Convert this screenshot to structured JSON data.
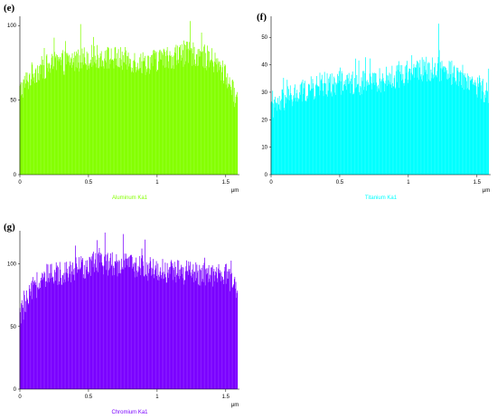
{
  "chart_data": [
    {
      "type": "bar",
      "panel_label": "(e)",
      "series_label": "Aluminum Ka1",
      "color": "#84FF00",
      "x_unit": "μm",
      "xlim": [
        0,
        1.6
      ],
      "ylim": [
        0,
        105
      ],
      "x_ticks": [
        0,
        0.5,
        1,
        1.5
      ],
      "x_tick_labels": [
        "0",
        "0.5",
        "1",
        "1.5"
      ],
      "y_ticks": [
        0,
        50,
        100
      ],
      "y_tick_labels": [
        "0",
        "50",
        "100"
      ],
      "profile_x": [
        0,
        0.05,
        0.1,
        0.2,
        0.3,
        0.4,
        0.5,
        0.6,
        0.7,
        0.8,
        0.9,
        1.0,
        1.1,
        1.2,
        1.3,
        1.4,
        1.5,
        1.55,
        1.6
      ],
      "profile_y": [
        55,
        62,
        68,
        72,
        74,
        76,
        78,
        78,
        77,
        76,
        74,
        76,
        78,
        80,
        80,
        76,
        66,
        55,
        48
      ],
      "peak_value": 103
    },
    {
      "type": "bar",
      "panel_label": "(f)",
      "series_label": "Titanium Ka1",
      "color": "#00FFFF",
      "x_unit": "μm",
      "xlim": [
        0,
        1.6
      ],
      "ylim": [
        0,
        57
      ],
      "x_ticks": [
        0,
        0.5,
        1,
        1.5
      ],
      "x_tick_labels": [
        "0",
        "0.5",
        "1",
        "1.5"
      ],
      "y_ticks": [
        0,
        10,
        20,
        30,
        40,
        50
      ],
      "y_tick_labels": [
        "0",
        "10",
        "20",
        "30",
        "40",
        "50"
      ],
      "profile_x": [
        0,
        0.05,
        0.1,
        0.2,
        0.3,
        0.4,
        0.5,
        0.6,
        0.7,
        0.8,
        0.9,
        1.0,
        1.1,
        1.2,
        1.3,
        1.4,
        1.5,
        1.6
      ],
      "profile_y": [
        22,
        25,
        27,
        29,
        31,
        32,
        33,
        33,
        33,
        34,
        35,
        37,
        38,
        38,
        37,
        35,
        32,
        28
      ],
      "peak_value": 55
    },
    {
      "type": "bar",
      "panel_label": "(g)",
      "series_label": "Chromium Ka1",
      "color": "#7A00FF",
      "x_unit": "μm",
      "xlim": [
        0,
        1.6
      ],
      "ylim": [
        0,
        125
      ],
      "x_ticks": [
        0,
        0.5,
        1,
        1.5
      ],
      "x_tick_labels": [
        "0",
        "0.5",
        "1",
        "1.5"
      ],
      "y_ticks": [
        0,
        50,
        100
      ],
      "y_tick_labels": [
        "0",
        "50",
        "100"
      ],
      "profile_x": [
        0,
        0.05,
        0.1,
        0.2,
        0.3,
        0.4,
        0.5,
        0.6,
        0.7,
        0.8,
        0.9,
        1.0,
        1.1,
        1.2,
        1.3,
        1.4,
        1.5,
        1.55,
        1.6
      ],
      "profile_y": [
        58,
        68,
        80,
        88,
        92,
        95,
        98,
        100,
        99,
        98,
        96,
        94,
        93,
        92,
        91,
        90,
        90,
        85,
        70
      ],
      "peak_value": 126
    }
  ]
}
